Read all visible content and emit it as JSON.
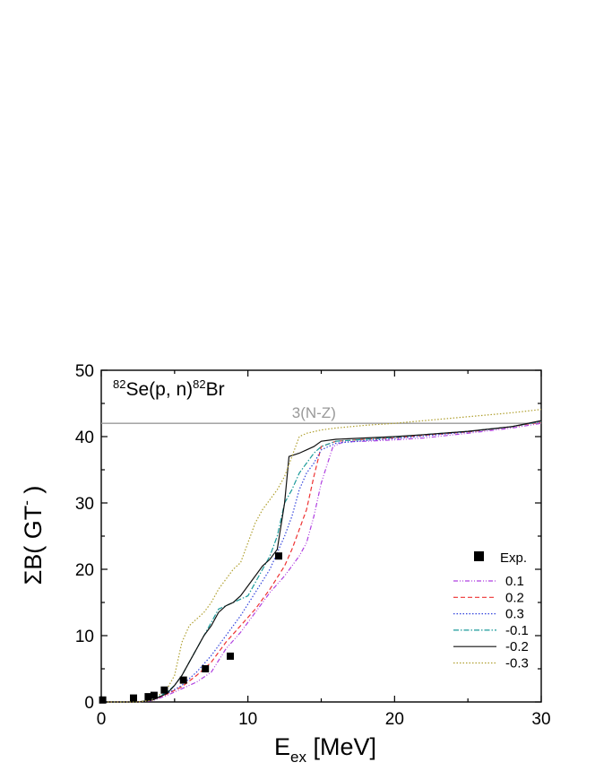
{
  "chart_data": {
    "type": "line",
    "title": "",
    "annotation": {
      "reaction": {
        "a": "82",
        "target": "Se(p, n)",
        "b": "82",
        "product": "Br"
      },
      "reference_label": "3(N-Z)",
      "reference_value": 42
    },
    "xlabel": {
      "main": "E",
      "sub": "ex",
      "unit": " [MeV]"
    },
    "ylabel": {
      "main": "ΣB( GT",
      "sup": "-",
      "close": " )"
    },
    "xlim": [
      0,
      30
    ],
    "ylim": [
      0,
      50
    ],
    "xticks": [
      "0",
      "10",
      "20",
      "30"
    ],
    "yticks": [
      "0",
      "10",
      "20",
      "30",
      "40",
      "50"
    ],
    "grid": false,
    "legend_position": "bottom-right",
    "experiment": {
      "name": "Exp.",
      "x": [
        0.1,
        2.2,
        3.2,
        3.6,
        4.3,
        5.6,
        7.1,
        8.8,
        12.1
      ],
      "y": [
        0.3,
        0.6,
        0.8,
        1.0,
        1.8,
        3.3,
        5.0,
        6.9,
        22.0
      ]
    },
    "series": [
      {
        "name": "0.1",
        "color": "#b040e0",
        "dash": "5,2,1,2,1,2",
        "x": [
          0,
          2.5,
          3.5,
          4.5,
          5.5,
          6.5,
          7.5,
          8.5,
          9.5,
          10.5,
          11.5,
          12.5,
          13.0,
          13.5,
          14.0,
          14.5,
          15.0,
          15.8,
          16.5,
          18,
          20,
          22,
          25,
          28,
          30
        ],
        "y": [
          0,
          0,
          0.2,
          1.0,
          2.0,
          3.0,
          4.5,
          8.0,
          10.5,
          13.5,
          16.5,
          19.0,
          20.5,
          22.0,
          24.0,
          28.0,
          33.0,
          38.5,
          39.2,
          39.3,
          39.5,
          39.8,
          40.5,
          41.3,
          42.0
        ]
      },
      {
        "name": "0.2",
        "color": "#ee3333",
        "dash": "5,3",
        "x": [
          0,
          2.5,
          3.5,
          4.5,
          5.5,
          6.5,
          7.5,
          8.5,
          9.5,
          10.5,
          11.5,
          12.5,
          13.0,
          13.5,
          14.0,
          14.5,
          15.0,
          16,
          18,
          20,
          22,
          25,
          28,
          30
        ],
        "y": [
          0,
          0,
          0.3,
          1.2,
          2.3,
          4.0,
          6.0,
          9.0,
          11.5,
          14.0,
          17.0,
          20.5,
          23.0,
          26.0,
          29.0,
          34.0,
          38.5,
          39.3,
          39.6,
          39.8,
          40.2,
          40.7,
          41.5,
          42.2
        ]
      },
      {
        "name": "0.3",
        "color": "#3344dd",
        "dash": "1.5,2",
        "x": [
          0,
          2.5,
          3.5,
          4.5,
          5.5,
          6.5,
          7.5,
          8.5,
          9.5,
          10.5,
          11.5,
          12.5,
          13.0,
          13.5,
          14.0,
          14.5,
          15.0,
          16,
          18,
          20,
          22,
          25,
          28,
          30
        ],
        "y": [
          0,
          0,
          0.3,
          1.3,
          2.5,
          4.5,
          7.0,
          10.0,
          13.0,
          16.5,
          20.0,
          25.0,
          28.0,
          32.0,
          34.5,
          36.0,
          38.0,
          39.0,
          39.4,
          39.7,
          40.1,
          40.7,
          41.5,
          42.3
        ]
      },
      {
        "name": "-0.1",
        "color": "#1a9a9a",
        "dash": "6,2,1.5,2",
        "x": [
          0,
          2.5,
          3.5,
          4.5,
          5.0,
          5.5,
          6.0,
          6.5,
          7.0,
          7.5,
          8.0,
          9.0,
          10.0,
          10.5,
          11.0,
          11.5,
          12.0,
          12.5,
          13.0,
          13.5,
          14.0,
          14.5,
          15.0,
          16,
          18,
          20,
          22,
          25,
          28,
          30
        ],
        "y": [
          0,
          0,
          0.3,
          1.5,
          2.5,
          4.0,
          6.0,
          8.0,
          10.0,
          12.0,
          14.0,
          15.0,
          16.0,
          18.0,
          20.0,
          22.0,
          25.0,
          30.0,
          32.0,
          34.5,
          36.0,
          37.5,
          38.5,
          39.3,
          39.6,
          39.9,
          40.3,
          40.8,
          41.5,
          42.3
        ]
      },
      {
        "name": "-0.2",
        "color": "#111111",
        "dash": "",
        "x": [
          0,
          2.5,
          3.5,
          4.5,
          5.0,
          5.5,
          6.0,
          6.5,
          7.0,
          7.5,
          8.0,
          8.5,
          9.0,
          9.5,
          10.0,
          10.5,
          11.0,
          11.5,
          12.0,
          12.5,
          12.8,
          13.5,
          14.0,
          14.5,
          15.0,
          16,
          18,
          20,
          22,
          25,
          28,
          30
        ],
        "y": [
          0,
          0,
          0.3,
          1.3,
          2.5,
          4.0,
          6.0,
          8.0,
          10.0,
          11.5,
          13.5,
          14.5,
          15.0,
          16.0,
          17.5,
          19.0,
          20.5,
          21.5,
          23.0,
          30.0,
          37.0,
          37.5,
          38.0,
          38.5,
          39.3,
          39.6,
          39.8,
          40.0,
          40.3,
          40.8,
          41.5,
          42.4
        ]
      },
      {
        "name": "-0.3",
        "color": "#b0a030",
        "dash": "1.5,2",
        "x": [
          0,
          2.5,
          3.5,
          4.5,
          5.0,
          5.5,
          6.0,
          6.5,
          7.0,
          7.5,
          8.0,
          8.5,
          9.0,
          9.5,
          10.0,
          10.5,
          11.0,
          11.5,
          12.0,
          12.5,
          13.0,
          13.5,
          14,
          15,
          16,
          18,
          20,
          22,
          25,
          28,
          30
        ],
        "y": [
          0,
          0,
          0.3,
          2.0,
          4.0,
          9.0,
          11.5,
          12.5,
          13.5,
          15.0,
          17.0,
          18.5,
          20.0,
          21.0,
          24.0,
          27.0,
          29.0,
          30.5,
          32.0,
          34.0,
          37.0,
          40.0,
          40.5,
          41.0,
          41.3,
          41.7,
          42.0,
          42.4,
          43.0,
          43.6,
          44.1
        ]
      }
    ],
    "reference_line_color": "#999999"
  }
}
